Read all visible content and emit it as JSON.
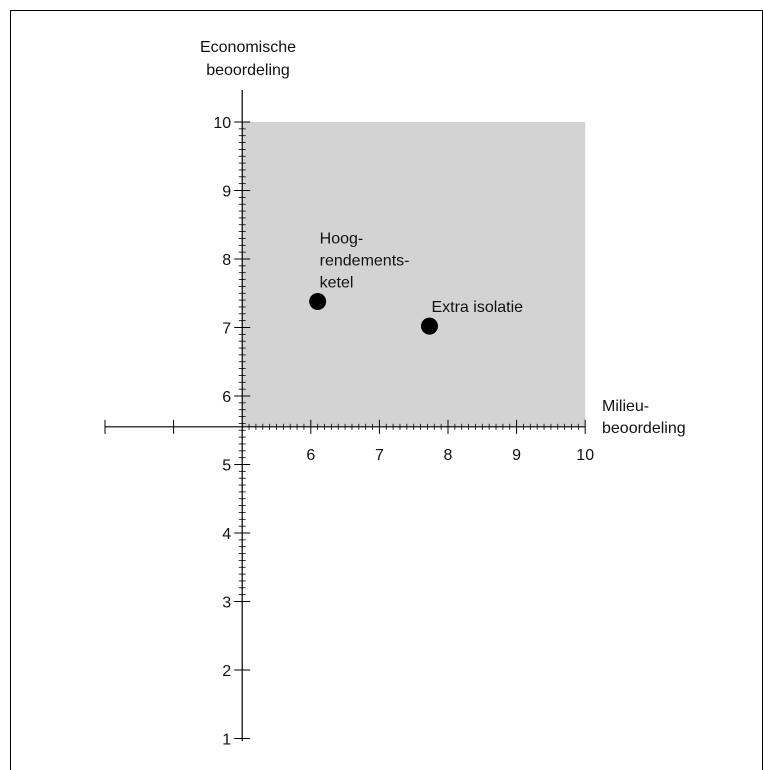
{
  "chart_data": {
    "type": "scatter",
    "title": "",
    "ylabel": [
      "Economische",
      "beoordeling"
    ],
    "xlabel": [
      "Milieu-",
      "beoordeling"
    ],
    "x_ticks": [
      6,
      7,
      8,
      9,
      10
    ],
    "y_ticks": [
      1,
      2,
      3,
      4,
      5,
      6,
      7,
      8,
      9,
      10
    ],
    "xlim": [
      3,
      10
    ],
    "ylim": [
      1,
      10
    ],
    "x_axis_crosses_y_at": 5.55,
    "highlight_region": {
      "x": [
        5,
        10
      ],
      "y": [
        5.55,
        10
      ],
      "color": "#d3d3d3"
    },
    "points": [
      {
        "label": [
          "Hoog-",
          "rendements-",
          "ketel"
        ],
        "x": 6.1,
        "y": 7.38
      },
      {
        "label": [
          "Extra isolatie"
        ],
        "x": 7.73,
        "y": 7.02
      }
    ],
    "marker_color": "#000000",
    "grid": false
  }
}
